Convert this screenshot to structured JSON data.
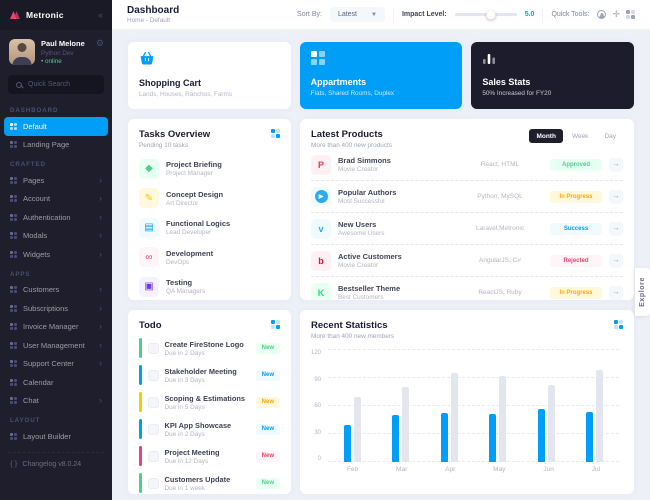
{
  "sidebar": {
    "brand": "Metronic",
    "user": {
      "name": "Paul Melone",
      "role": "Python Dev",
      "status": "online"
    },
    "search_placeholder": "Quick Search",
    "sections": [
      {
        "label": "DASHBOARD",
        "items": [
          {
            "label": "Default",
            "icon": "dashboard-icon",
            "cls": "active"
          },
          {
            "label": "Landing Page",
            "icon": "landing-page-icon"
          }
        ]
      },
      {
        "label": "CRAFTED",
        "items": [
          {
            "label": "Pages",
            "icon": "pages-icon",
            "chev": true
          },
          {
            "label": "Account",
            "icon": "account-icon",
            "chev": true
          },
          {
            "label": "Authentication",
            "icon": "authentication-icon",
            "chev": true
          },
          {
            "label": "Modals",
            "icon": "modals-icon",
            "chev": true
          },
          {
            "label": "Widgets",
            "icon": "widgets-icon",
            "chev": true
          }
        ]
      },
      {
        "label": "APPS",
        "items": [
          {
            "label": "Customers",
            "icon": "customers-icon",
            "chev": true
          },
          {
            "label": "Subscriptions",
            "icon": "subscriptions-icon",
            "chev": true
          },
          {
            "label": "Invoice Manager",
            "icon": "invoice-manager-icon",
            "chev": true
          },
          {
            "label": "User Management",
            "icon": "user-management-icon",
            "chev": true
          },
          {
            "label": "Support Center",
            "icon": "support-center-icon",
            "chev": true
          },
          {
            "label": "Calendar",
            "icon": "calendar-icon"
          },
          {
            "label": "Chat",
            "icon": "chat-icon",
            "chev": true
          }
        ]
      },
      {
        "label": "LAYOUT",
        "items": [
          {
            "label": "Layout Builder",
            "icon": "layout-builder-icon"
          }
        ]
      }
    ],
    "changelog": "Changelog v8.0.24"
  },
  "header": {
    "title": "Dashboard",
    "breadcrumb_home": "Home",
    "breadcrumb_sep": "-",
    "breadcrumb_current": "Default",
    "sort_label": "Sort By:",
    "sort_value": "Latest",
    "impact_label": "Impact Level:",
    "impact_value": "5.0",
    "impact_pct": 58,
    "quick_tools_label": "Quick Tools:"
  },
  "stat_cards": [
    {
      "title": "Shopping Cart",
      "subtitle": "Lands, Houses, Ranchos, Farms",
      "style": "white",
      "icon": "shopping-basket-icon"
    },
    {
      "title": "Appartments",
      "subtitle": "Flats, Shared Rooms, Duplex",
      "style": "blue",
      "icon": "apartments-grid-icon"
    },
    {
      "title": "Sales Stats",
      "subtitle": "50% Increased for FY20",
      "style": "dark",
      "icon": "bar-chart-icon"
    }
  ],
  "tasks": {
    "title": "Tasks Overview",
    "subtitle": "Pending 10 tasks",
    "items": [
      {
        "title": "Project Briefing",
        "subtitle": "Project Manager",
        "icon": "briefing-icon",
        "glyph": "◆",
        "cls": "t-green"
      },
      {
        "title": "Concept Design",
        "subtitle": "Art Director",
        "icon": "pencil-icon",
        "glyph": "✎",
        "cls": "t-yellow"
      },
      {
        "title": "Functional Logics",
        "subtitle": "Lead Developer",
        "icon": "chat-bubble-icon",
        "glyph": "▤",
        "cls": "t-blue"
      },
      {
        "title": "Development",
        "subtitle": "DevOps",
        "icon": "broken-link-icon",
        "glyph": "∞",
        "cls": "t-red"
      },
      {
        "title": "Testing",
        "subtitle": "QA Managers",
        "icon": "lock-icon",
        "glyph": "▣",
        "cls": "t-purple"
      }
    ]
  },
  "products": {
    "title": "Latest Products",
    "subtitle": "More than 400 new products",
    "tabs": [
      {
        "label": "Month",
        "cls": "active"
      },
      {
        "label": "Week"
      },
      {
        "label": "Day"
      }
    ],
    "rows": [
      {
        "title": "Brad Simmons",
        "subtitle": "Movie Creator",
        "tech": "React, HTML",
        "status": "Approved",
        "status_cls": "green",
        "icon": "pinterest-icon",
        "glyph": "P",
        "icon_cls": "ico-p"
      },
      {
        "title": "Popular Authors",
        "subtitle": "Most Successful",
        "tech": "Python, MySQL",
        "status": "In Progress",
        "status_cls": "yellow",
        "icon": "telegram-icon",
        "glyph": "▶",
        "icon_cls": "ico-tg"
      },
      {
        "title": "New Users",
        "subtitle": "Awesome Users",
        "tech": "Laravel,Metronic",
        "status": "Success",
        "status_cls": "blue",
        "icon": "vimeo-icon",
        "glyph": "v",
        "icon_cls": "ico-v"
      },
      {
        "title": "Active Customers",
        "subtitle": "Movie Creator",
        "tech": "AngularJS, C#",
        "status": "Rejected",
        "status_cls": "red",
        "icon": "bebo-icon",
        "glyph": "b",
        "icon_cls": "ico-b"
      },
      {
        "title": "Bestseller Theme",
        "subtitle": "Best Customers",
        "tech": "ReactJS, Ruby",
        "status": "In Progress",
        "status_cls": "yellow",
        "icon": "kickstarter-icon",
        "glyph": "K",
        "icon_cls": "ico-k"
      }
    ]
  },
  "todo": {
    "title": "Todo",
    "items": [
      {
        "title": "Create FireStone Logo",
        "due": "Due in 2 Days",
        "badge": "New",
        "cls": "green"
      },
      {
        "title": "Stakeholder Meeting",
        "due": "Due in 3 Days",
        "badge": "New",
        "cls": "blue"
      },
      {
        "title": "Scoping & Estimations",
        "due": "Due in 5 Days",
        "badge": "New",
        "cls": "yellow"
      },
      {
        "title": "KPI App Showcase",
        "due": "Due in 2 Days",
        "badge": "New",
        "cls": "blue"
      },
      {
        "title": "Project Meeting",
        "due": "Due in 12 Days",
        "badge": "New",
        "cls": "red"
      },
      {
        "title": "Customers Update",
        "due": "Due in 1 week",
        "badge": "New",
        "cls": "green"
      }
    ]
  },
  "chart_data": {
    "type": "bar",
    "title": "Recent Statistics",
    "subtitle": "More than 400 new members",
    "categories": [
      "Feb",
      "Mar",
      "Apr",
      "May",
      "Jun",
      "Jul"
    ],
    "series": [
      {
        "name": "primary",
        "color": "#009EF7",
        "values": [
          40,
          50,
          53,
          51,
          57,
          54
        ]
      },
      {
        "name": "secondary",
        "color": "#E4E6EF",
        "values": [
          70,
          80,
          95,
          92,
          82,
          99
        ]
      }
    ],
    "ylim": [
      0,
      120
    ],
    "yticks": [
      0,
      30,
      60,
      90,
      120
    ],
    "grid": true,
    "legend": false,
    "xlabel": "",
    "ylabel": ""
  },
  "explore_label": "Explore",
  "colors": {
    "accent": "#009EF7",
    "success": "#50CD89",
    "warning": "#FFC700",
    "danger": "#F1416C",
    "dark": "#1E1E2D"
  }
}
